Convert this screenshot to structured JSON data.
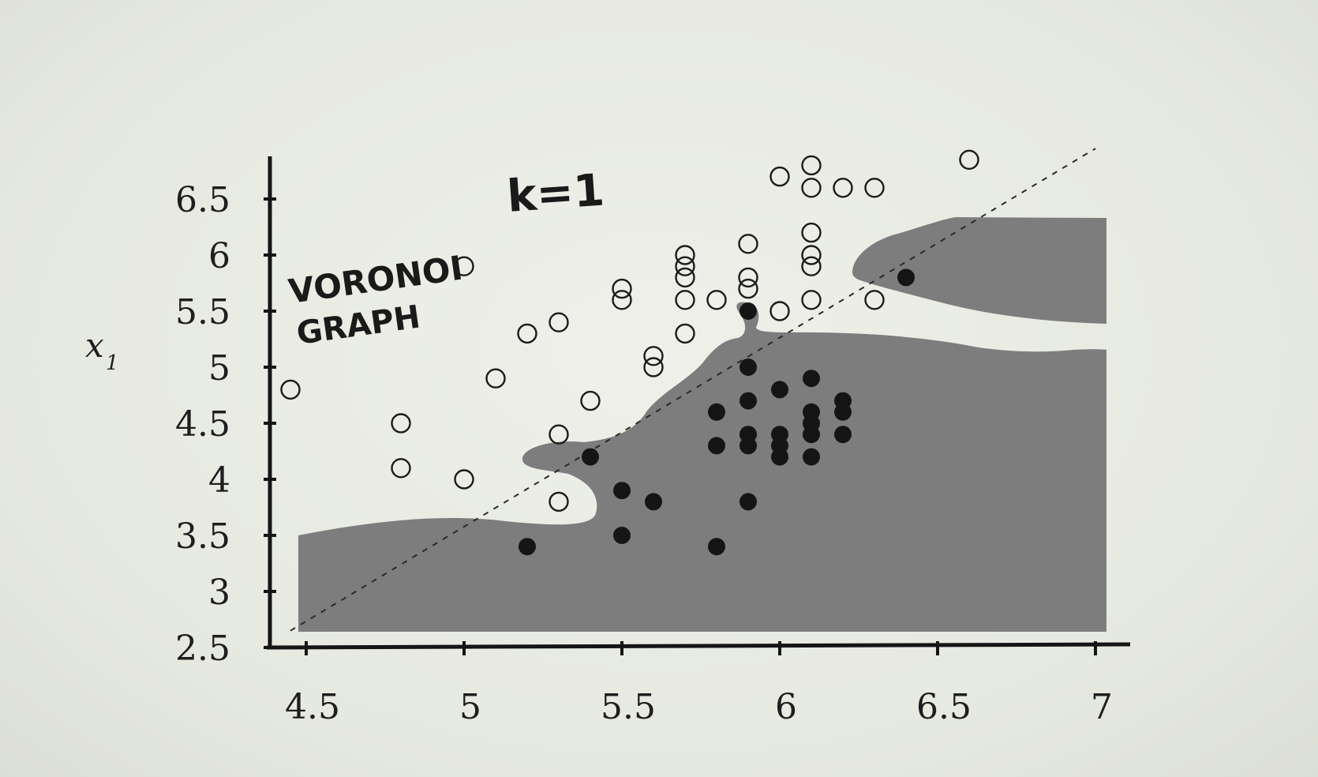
{
  "chart_data": {
    "type": "scatter",
    "title": "",
    "xlabel": "",
    "ylabel": "x",
    "ylabel_subscript": "1",
    "annotations": [
      "k=1",
      "VORONOI",
      "GRAPH"
    ],
    "xlim": [
      4.45,
      7.05
    ],
    "ylim": [
      2.5,
      6.85
    ],
    "xticks": [
      4.5,
      5,
      5.5,
      6,
      6.5,
      7
    ],
    "xtick_labels": [
      "4.5",
      "5",
      "5.5",
      "6",
      "6.5",
      "7"
    ],
    "yticks": [
      2.5,
      3,
      3.5,
      4,
      4.5,
      5,
      5.5,
      6,
      6.5
    ],
    "ytick_labels": [
      "2.5",
      "3",
      "3.5",
      "4",
      "4.5",
      "5",
      "5.5",
      "6",
      "6.5"
    ],
    "grid": false,
    "decision_region_color": "#7d7d7d",
    "decision_boundary": "1-nearest-neighbour region (shaded) for the filled class",
    "diagonal_reference": {
      "style": "dashed",
      "from": [
        4.45,
        2.65
      ],
      "to": [
        7.0,
        6.95
      ]
    },
    "series": [
      {
        "marker": "open-circle",
        "points": [
          [
            4.45,
            4.8
          ],
          [
            4.8,
            4.5
          ],
          [
            4.8,
            4.1
          ],
          [
            5.0,
            5.9
          ],
          [
            5.0,
            4.0
          ],
          [
            5.1,
            4.9
          ],
          [
            5.2,
            5.3
          ],
          [
            5.3,
            5.4
          ],
          [
            5.3,
            4.4
          ],
          [
            5.3,
            3.8
          ],
          [
            5.4,
            4.7
          ],
          [
            5.5,
            5.7
          ],
          [
            5.5,
            5.6
          ],
          [
            5.6,
            5.1
          ],
          [
            5.6,
            5.0
          ],
          [
            5.7,
            6.0
          ],
          [
            5.7,
            5.9
          ],
          [
            5.7,
            5.8
          ],
          [
            5.7,
            5.6
          ],
          [
            5.7,
            5.3
          ],
          [
            5.8,
            5.6
          ],
          [
            5.9,
            6.1
          ],
          [
            5.9,
            5.8
          ],
          [
            5.9,
            5.7
          ],
          [
            6.0,
            6.7
          ],
          [
            6.0,
            5.5
          ],
          [
            6.1,
            6.8
          ],
          [
            6.1,
            6.6
          ],
          [
            6.1,
            6.2
          ],
          [
            6.1,
            6.0
          ],
          [
            6.1,
            5.9
          ],
          [
            6.1,
            5.6
          ],
          [
            6.2,
            6.6
          ],
          [
            6.3,
            6.6
          ],
          [
            6.3,
            5.6
          ],
          [
            6.6,
            6.85
          ]
        ]
      },
      {
        "marker": "filled-circle",
        "points": [
          [
            5.2,
            3.4
          ],
          [
            5.4,
            4.2
          ],
          [
            5.5,
            3.9
          ],
          [
            5.5,
            3.5
          ],
          [
            5.6,
            3.8
          ],
          [
            5.8,
            4.6
          ],
          [
            5.8,
            4.3
          ],
          [
            5.8,
            3.4
          ],
          [
            5.9,
            5.5
          ],
          [
            5.9,
            5.0
          ],
          [
            5.9,
            4.7
          ],
          [
            5.9,
            4.4
          ],
          [
            5.9,
            4.3
          ],
          [
            5.9,
            3.8
          ],
          [
            6.0,
            4.8
          ],
          [
            6.0,
            4.4
          ],
          [
            6.0,
            4.3
          ],
          [
            6.0,
            4.2
          ],
          [
            6.1,
            4.9
          ],
          [
            6.1,
            4.6
          ],
          [
            6.1,
            4.5
          ],
          [
            6.1,
            4.4
          ],
          [
            6.1,
            4.2
          ],
          [
            6.2,
            4.7
          ],
          [
            6.2,
            4.6
          ],
          [
            6.2,
            4.4
          ],
          [
            6.4,
            5.8
          ]
        ]
      }
    ]
  }
}
